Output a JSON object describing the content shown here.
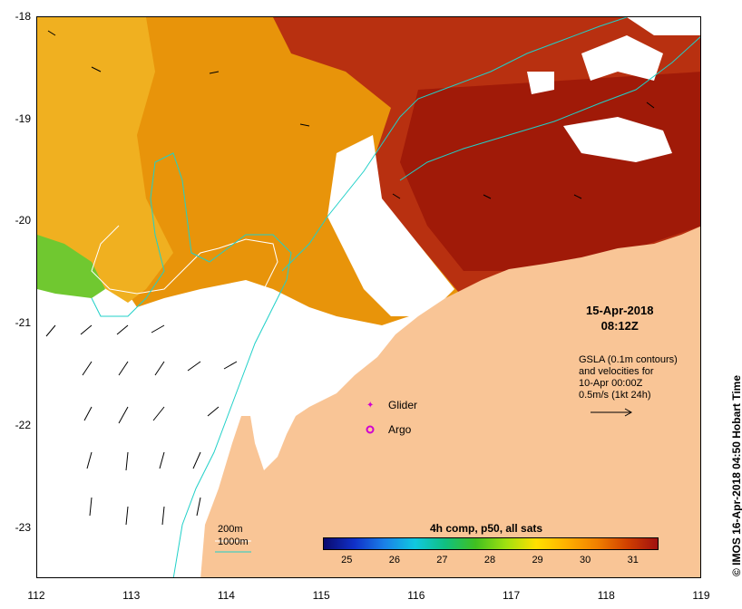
{
  "map": {
    "y_ticks": [
      {
        "label": "-18",
        "value": -18
      },
      {
        "label": "-19",
        "value": -19
      },
      {
        "label": "-20",
        "value": -20
      },
      {
        "label": "-21",
        "value": -21
      },
      {
        "label": "-22",
        "value": -22
      },
      {
        "label": "-23",
        "value": -23
      }
    ],
    "x_ticks": [
      {
        "label": "112",
        "value": 112
      },
      {
        "label": "113",
        "value": 113
      },
      {
        "label": "114",
        "value": 114
      },
      {
        "label": "115",
        "value": 115
      },
      {
        "label": "116",
        "value": 116
      },
      {
        "label": "117",
        "value": 117
      },
      {
        "label": "118",
        "value": 118
      },
      {
        "label": "119",
        "value": 119
      }
    ],
    "land_color": "#f9c596",
    "contour_200_color": "#ffffff",
    "contour_1000_color": "#20d0c8"
  },
  "annotations": {
    "date": "15-Apr-2018",
    "time": "08:12Z",
    "gsla_line1": "GSLA (0.1m contours)",
    "gsla_line2": "and velocities for",
    "gsla_line3": "10-Apr 00:00Z",
    "gsla_line4": "0.5m/s (1kt 24h)",
    "glider_label": "Glider",
    "argo_label": "Argo",
    "contour_200_label": "200m",
    "contour_1000_label": "1000m",
    "credit": "© IMOS 16-Apr-2018 04:50 Hobart Time"
  },
  "colorbar": {
    "title": "4h comp, p50, all sats",
    "ticks": [
      {
        "label": "25",
        "value": 25
      },
      {
        "label": "26",
        "value": 26
      },
      {
        "label": "27",
        "value": 27
      },
      {
        "label": "28",
        "value": 28
      },
      {
        "label": "29",
        "value": 29
      },
      {
        "label": "30",
        "value": 30
      },
      {
        "label": "31",
        "value": 31
      }
    ],
    "min": 24.5,
    "max": 31.5
  }
}
